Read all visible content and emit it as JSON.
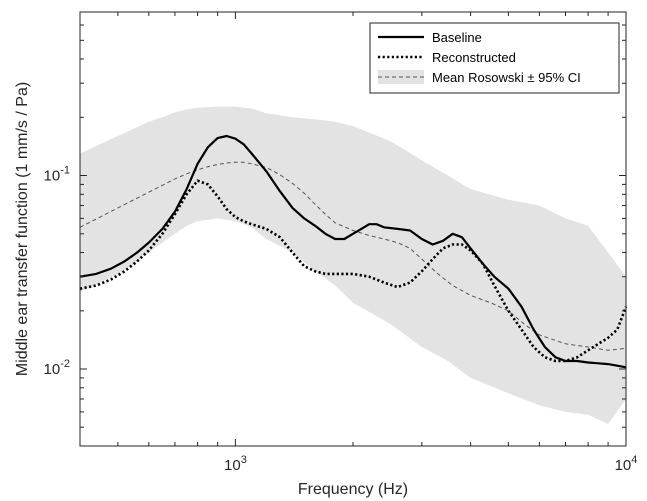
{
  "chart_data": {
    "type": "line",
    "title": "",
    "xlabel": "Frequency (Hz)",
    "ylabel": "Middle ear transfer function (1 mm/s / Pa)",
    "x_scale": "log",
    "y_scale": "log",
    "xlim": [
      400,
      10000
    ],
    "ylim": [
      0.004,
      0.7
    ],
    "grid": false,
    "legend_position": "top-right",
    "x_ticks": [
      {
        "value": 1000,
        "base": "10",
        "exp": "3"
      },
      {
        "value": 10000,
        "base": "10",
        "exp": "4"
      }
    ],
    "y_ticks": [
      {
        "value": 0.01,
        "base": "10",
        "exp": "-2"
      },
      {
        "value": 0.1,
        "base": "10",
        "exp": "-1"
      }
    ],
    "legend": [
      {
        "key": "baseline",
        "label": "Baseline"
      },
      {
        "key": "reconstructed",
        "label": "Reconstructed"
      },
      {
        "key": "mean",
        "label": "Mean Rosowski ± 95% CI"
      }
    ],
    "colors": {
      "baseline": "#000000",
      "reconstructed": "#000000",
      "mean": "#555555",
      "ci_band": "#e3e3e3"
    },
    "series": [
      {
        "key": "baseline",
        "x": [
          400,
          440,
          480,
          520,
          560,
          600,
          650,
          700,
          750,
          800,
          850,
          900,
          950,
          1000,
          1050,
          1100,
          1200,
          1300,
          1400,
          1500,
          1600,
          1700,
          1800,
          1900,
          2000,
          2100,
          2200,
          2300,
          2400,
          2600,
          2800,
          3000,
          3200,
          3400,
          3600,
          3800,
          4000,
          4300,
          4600,
          5000,
          5400,
          5800,
          6200,
          6600,
          7000,
          7500,
          8000,
          8500,
          9000,
          9500,
          10000
        ],
        "y": [
          0.03,
          0.031,
          0.033,
          0.036,
          0.04,
          0.045,
          0.053,
          0.065,
          0.085,
          0.115,
          0.14,
          0.156,
          0.16,
          0.155,
          0.145,
          0.13,
          0.105,
          0.083,
          0.068,
          0.06,
          0.055,
          0.05,
          0.047,
          0.047,
          0.05,
          0.053,
          0.056,
          0.056,
          0.054,
          0.053,
          0.052,
          0.047,
          0.044,
          0.046,
          0.05,
          0.048,
          0.042,
          0.035,
          0.03,
          0.026,
          0.021,
          0.016,
          0.013,
          0.0115,
          0.011,
          0.011,
          0.0108,
          0.0107,
          0.0106,
          0.0104,
          0.0102
        ]
      },
      {
        "key": "reconstructed",
        "x": [
          400,
          440,
          480,
          520,
          560,
          600,
          650,
          700,
          750,
          800,
          850,
          900,
          950,
          1000,
          1050,
          1100,
          1200,
          1300,
          1400,
          1500,
          1600,
          1700,
          1800,
          1900,
          2000,
          2200,
          2400,
          2600,
          2800,
          3000,
          3200,
          3400,
          3600,
          3800,
          4000,
          4300,
          4600,
          5000,
          5400,
          5800,
          6200,
          6600,
          7000,
          7500,
          8000,
          8500,
          9000,
          9500,
          10000
        ],
        "y": [
          0.026,
          0.027,
          0.029,
          0.032,
          0.036,
          0.041,
          0.05,
          0.063,
          0.08,
          0.094,
          0.09,
          0.078,
          0.067,
          0.061,
          0.058,
          0.056,
          0.053,
          0.048,
          0.04,
          0.034,
          0.032,
          0.031,
          0.031,
          0.031,
          0.031,
          0.03,
          0.028,
          0.0265,
          0.028,
          0.032,
          0.037,
          0.042,
          0.044,
          0.044,
          0.041,
          0.035,
          0.027,
          0.02,
          0.016,
          0.013,
          0.0115,
          0.011,
          0.011,
          0.0115,
          0.0125,
          0.0135,
          0.0145,
          0.016,
          0.021
        ]
      },
      {
        "key": "mean",
        "x": [
          400,
          450,
          500,
          550,
          600,
          650,
          700,
          750,
          800,
          850,
          900,
          950,
          1000,
          1050,
          1100,
          1200,
          1300,
          1400,
          1500,
          1600,
          1700,
          1800,
          2000,
          2200,
          2400,
          2600,
          2800,
          3000,
          3300,
          3600,
          4000,
          4500,
          5000,
          5500,
          6000,
          7000,
          8000,
          9000,
          10000
        ],
        "y": [
          0.054,
          0.061,
          0.068,
          0.075,
          0.082,
          0.089,
          0.096,
          0.102,
          0.107,
          0.111,
          0.114,
          0.116,
          0.117,
          0.117,
          0.115,
          0.11,
          0.101,
          0.091,
          0.081,
          0.071,
          0.063,
          0.057,
          0.052,
          0.049,
          0.047,
          0.045,
          0.042,
          0.037,
          0.031,
          0.027,
          0.024,
          0.022,
          0.02,
          0.017,
          0.015,
          0.0135,
          0.013,
          0.0125,
          0.0128
        ]
      }
    ],
    "ci_band": {
      "x": [
        400,
        450,
        500,
        550,
        600,
        650,
        700,
        750,
        800,
        900,
        1000,
        1100,
        1200,
        1400,
        1600,
        1800,
        2000,
        2500,
        3000,
        3500,
        4000,
        5000,
        6000,
        7000,
        8000,
        9000,
        10000
      ],
      "upper": [
        0.13,
        0.145,
        0.16,
        0.175,
        0.19,
        0.2,
        0.212,
        0.22,
        0.224,
        0.227,
        0.227,
        0.222,
        0.21,
        0.2,
        0.195,
        0.19,
        0.18,
        0.15,
        0.12,
        0.1,
        0.085,
        0.075,
        0.07,
        0.06,
        0.055,
        0.04,
        0.03
      ],
      "lower": [
        0.025,
        0.028,
        0.031,
        0.035,
        0.04,
        0.045,
        0.05,
        0.055,
        0.058,
        0.06,
        0.058,
        0.054,
        0.047,
        0.04,
        0.032,
        0.027,
        0.022,
        0.017,
        0.013,
        0.011,
        0.009,
        0.0075,
        0.0065,
        0.006,
        0.0058,
        0.0052,
        0.007
      ]
    }
  }
}
